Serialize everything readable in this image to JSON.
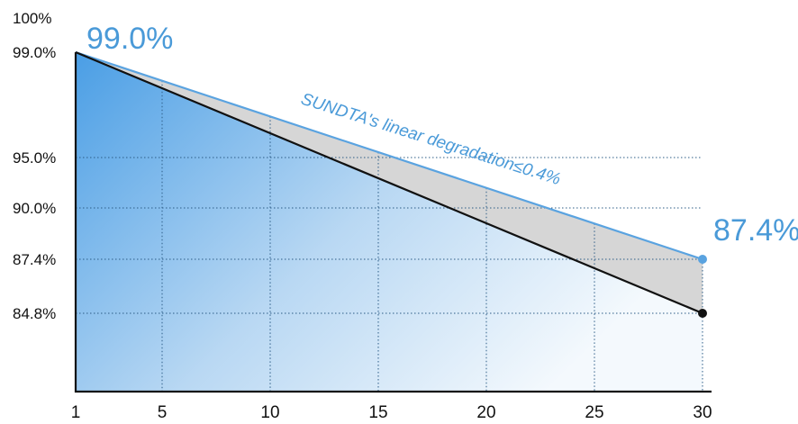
{
  "chart_data": {
    "type": "line",
    "x_ticks": [
      "1",
      "5",
      "10",
      "15",
      "20",
      "25",
      "30"
    ],
    "y_ticks": [
      {
        "value": 84.8,
        "label": "84.8%"
      },
      {
        "value": 87.4,
        "label": "87.4%"
      },
      {
        "value": 90.0,
        "label": "90.0%"
      },
      {
        "value": 95.0,
        "label": "95.0%"
      },
      {
        "value": 99.0,
        "label": "99.0%"
      },
      {
        "value": 100,
        "label": "100%"
      }
    ],
    "series": [
      {
        "name": "SUNDTA's linear degradation≤0.4%",
        "color": "#5aa3e0",
        "x": [
          1,
          30
        ],
        "y": [
          99.0,
          87.4
        ]
      },
      {
        "color": "#111111",
        "x": [
          1,
          30
        ],
        "y": [
          99.0,
          84.8
        ]
      }
    ],
    "annotations": {
      "start_label": "99.0%",
      "end_label": "87.4%",
      "line_label": "SUNDTA's linear degradation≤0.4%"
    },
    "grid_x": [
      5,
      10,
      15,
      20,
      25,
      30
    ],
    "grid_y": [
      95.0,
      90.0,
      87.4,
      84.8
    ]
  }
}
